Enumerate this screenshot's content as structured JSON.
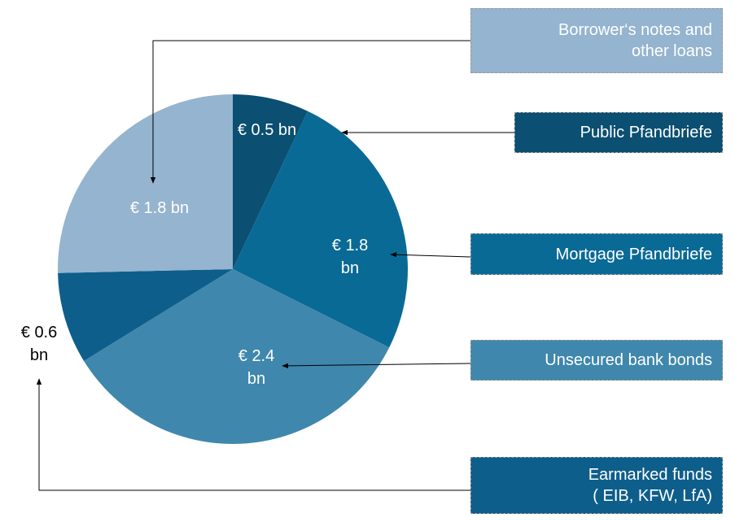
{
  "chart_data": {
    "type": "pie",
    "categories": [
      "Public Pfandbriefe",
      "Mortgage Pfandbriefe",
      "Unsecured bank bonds",
      "Earmarked funds\n( EIB, KFW, LfA)",
      "Borrower‘s notes and\nother loans"
    ],
    "values": [
      0.5,
      1.8,
      2.4,
      0.6,
      1.8
    ],
    "value_labels": [
      "€ 0.5 bn",
      "€ 1.8\nbn",
      "€ 2.4\nbn",
      "€ 0.6\nbn",
      "€ 1.8 bn"
    ],
    "colors": [
      "#0b4f72",
      "#0a6a96",
      "#3f87ad",
      "#0e5e8c",
      "#94b4cf"
    ]
  }
}
